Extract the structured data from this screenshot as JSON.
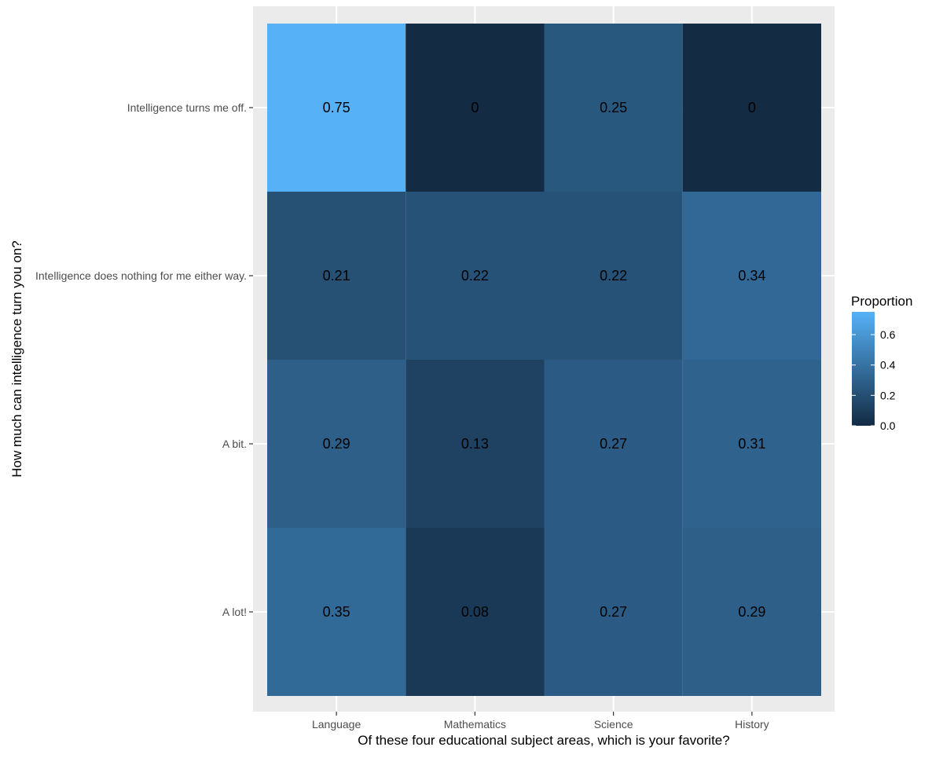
{
  "chart_data": {
    "type": "heatmap",
    "title": "",
    "xlabel": "Of these four educational subject areas, which is your favorite?",
    "ylabel": "How much can intelligence turn you on?",
    "x_categories": [
      "Language",
      "Mathematics",
      "Science",
      "History"
    ],
    "y_categories": [
      "Intelligence turns me off.",
      "Intelligence does nothing for me either way.",
      "A bit.",
      "A lot!"
    ],
    "values": [
      [
        0.75,
        0,
        0.25,
        0
      ],
      [
        0.21,
        0.22,
        0.22,
        0.34
      ],
      [
        0.29,
        0.13,
        0.27,
        0.31
      ],
      [
        0.35,
        0.08,
        0.27,
        0.29
      ]
    ],
    "labels": [
      [
        "0.75",
        "0",
        "0.25",
        "0"
      ],
      [
        "0.21",
        "0.22",
        "0.22",
        "0.34"
      ],
      [
        "0.29",
        "0.13",
        "0.27",
        "0.31"
      ],
      [
        "0.35",
        "0.08",
        "0.27",
        "0.29"
      ]
    ],
    "legend": {
      "title": "Proportion",
      "ticks": [
        0.0,
        0.2,
        0.4,
        0.6
      ],
      "tick_labels": [
        "0.0",
        "0.2",
        "0.4",
        "0.6"
      ],
      "range": [
        0,
        0.75
      ],
      "low_color": "#132B43",
      "high_color": "#56B1F7",
      "placement": "right"
    },
    "panel_background": "#EBEBEB",
    "grid": true
  }
}
